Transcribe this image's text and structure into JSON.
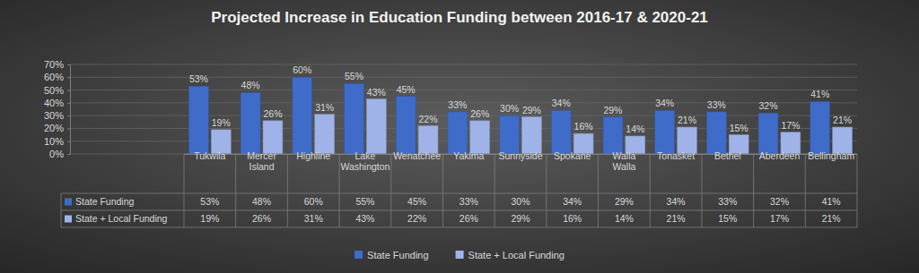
{
  "chart_data": {
    "type": "bar",
    "title": "Projected Increase in Education Funding between 2016-17 & 2020-21",
    "categories": [
      "Tukwila",
      "Mercer Island",
      "Highline",
      "Lake Washington",
      "Wenatchee",
      "Yakima",
      "Sunnyside",
      "Spokane",
      "Walla Walla",
      "Tonasket",
      "Bethel",
      "Aberdeen",
      "Bellingham"
    ],
    "series": [
      {
        "name": "State Funding",
        "color": "#3f6cc8",
        "values": [
          53,
          48,
          60,
          55,
          45,
          33,
          30,
          34,
          29,
          34,
          33,
          32,
          41
        ],
        "value_labels": [
          "53%",
          "48%",
          "60%",
          "55%",
          "45%",
          "33%",
          "30%",
          "34%",
          "29%",
          "34%",
          "33%",
          "32%",
          "41%"
        ]
      },
      {
        "name": "State + Local Funding",
        "color": "#9fb3e8",
        "values": [
          19,
          26,
          31,
          43,
          22,
          26,
          29,
          16,
          14,
          21,
          15,
          17,
          21
        ],
        "value_labels": [
          "19%",
          "26%",
          "31%",
          "43%",
          "22%",
          "26%",
          "29%",
          "16%",
          "14%",
          "21%",
          "15%",
          "17%",
          "21%"
        ]
      }
    ],
    "ylim": [
      0,
      70
    ],
    "yticks": [
      {
        "value": 0,
        "label": "0%"
      },
      {
        "value": 10,
        "label": "10%"
      },
      {
        "value": 20,
        "label": "20%"
      },
      {
        "value": 30,
        "label": "30%"
      },
      {
        "value": 40,
        "label": "40%"
      },
      {
        "value": 50,
        "label": "50%"
      },
      {
        "value": 60,
        "label": "60%"
      },
      {
        "value": 70,
        "label": "70%"
      }
    ],
    "grid": true,
    "data_labels": true,
    "legend": "bottom"
  }
}
